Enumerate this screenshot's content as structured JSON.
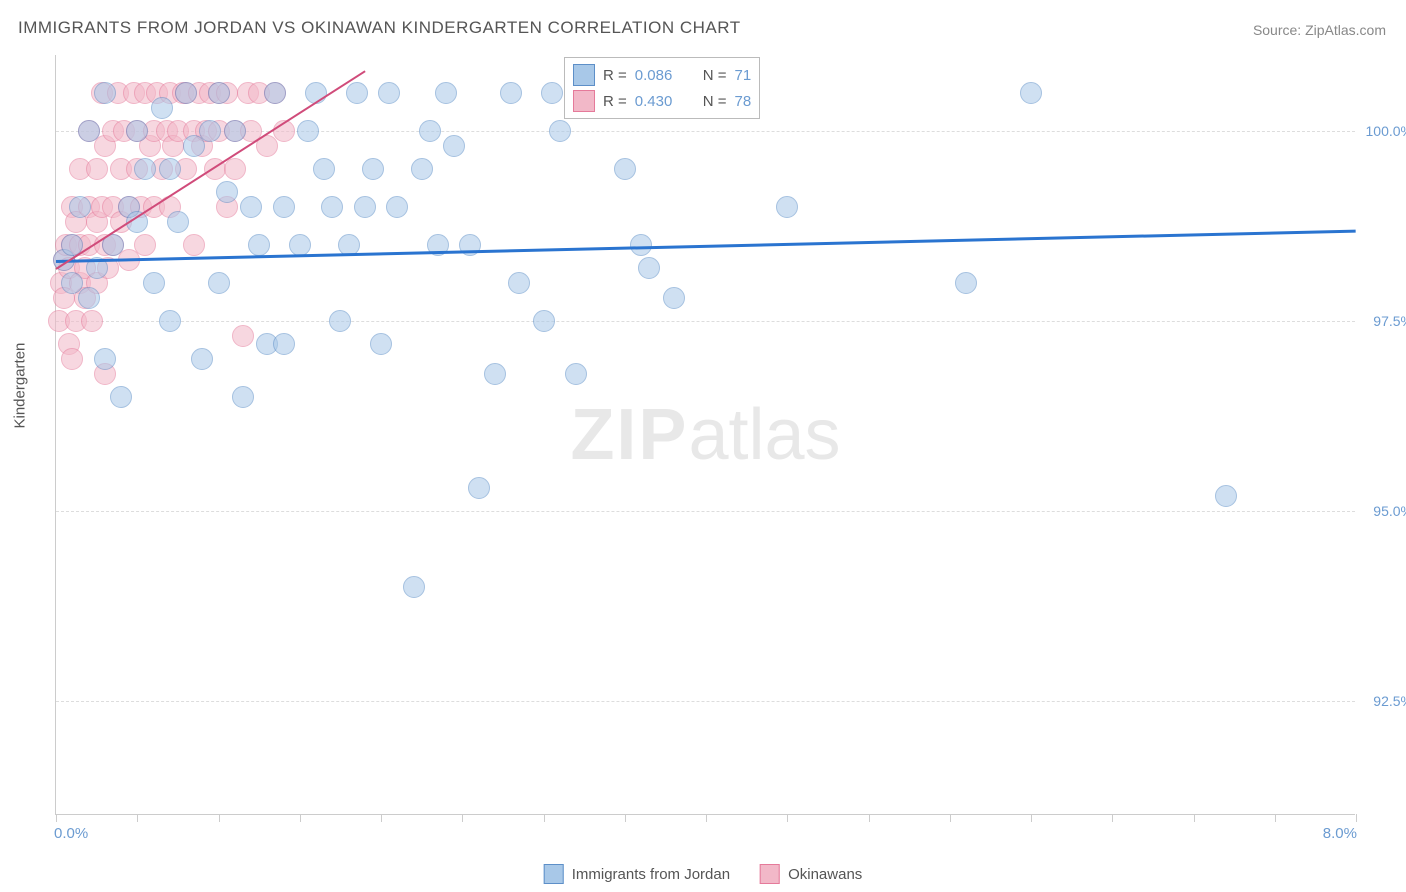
{
  "title": "IMMIGRANTS FROM JORDAN VS OKINAWAN KINDERGARTEN CORRELATION CHART",
  "source": "Source: ZipAtlas.com",
  "watermark_prefix": "ZIP",
  "watermark_suffix": "atlas",
  "chart": {
    "type": "scatter",
    "xlabel": "",
    "ylabel": "Kindergarten",
    "xlim": [
      0,
      8
    ],
    "ylim": [
      91,
      101
    ],
    "xtick_values": [
      0,
      0.5,
      1.0,
      1.5,
      2.0,
      2.5,
      3.0,
      3.5,
      4.0,
      4.5,
      5.0,
      5.5,
      6.0,
      6.5,
      7.0,
      7.5,
      8.0
    ],
    "xtick_labels_left": "0.0%",
    "xtick_labels_right": "8.0%",
    "ytick_values": [
      92.5,
      95.0,
      97.5,
      100.0
    ],
    "ytick_labels": [
      "92.5%",
      "95.0%",
      "97.5%",
      "100.0%"
    ],
    "grid_color": "#dddddd",
    "background_color": "#ffffff",
    "axis_color": "#cccccc",
    "label_fontsize": 15,
    "tick_label_color": "#6b9bd1",
    "marker_radius": 11,
    "marker_opacity": 0.55,
    "series": [
      {
        "name": "Immigrants from Jordan",
        "fill_color": "#a8c8e8",
        "stroke_color": "#5d8fc8",
        "R": "0.086",
        "N": "71",
        "trendline": {
          "x1": 0,
          "y1": 98.3,
          "x2": 8,
          "y2": 98.7,
          "width": 2.5,
          "color": "#2a74d0"
        },
        "points": [
          [
            0.05,
            98.3
          ],
          [
            0.1,
            98.0
          ],
          [
            0.1,
            98.5
          ],
          [
            0.2,
            97.8
          ],
          [
            0.15,
            99.0
          ],
          [
            0.2,
            100.0
          ],
          [
            0.25,
            98.2
          ],
          [
            0.3,
            97.0
          ],
          [
            0.3,
            100.5
          ],
          [
            0.35,
            98.5
          ],
          [
            0.4,
            96.5
          ],
          [
            0.45,
            99.0
          ],
          [
            0.5,
            100.0
          ],
          [
            0.5,
            98.8
          ],
          [
            0.55,
            99.5
          ],
          [
            0.6,
            98.0
          ],
          [
            0.65,
            100.3
          ],
          [
            0.7,
            99.5
          ],
          [
            0.7,
            97.5
          ],
          [
            0.75,
            98.8
          ],
          [
            0.8,
            100.5
          ],
          [
            0.85,
            99.8
          ],
          [
            0.9,
            97.0
          ],
          [
            0.95,
            100.0
          ],
          [
            1.0,
            100.5
          ],
          [
            1.0,
            98.0
          ],
          [
            1.05,
            99.2
          ],
          [
            1.1,
            100.0
          ],
          [
            1.15,
            96.5
          ],
          [
            1.2,
            99.0
          ],
          [
            1.25,
            98.5
          ],
          [
            1.3,
            97.2
          ],
          [
            1.35,
            100.5
          ],
          [
            1.4,
            97.2
          ],
          [
            1.4,
            99.0
          ],
          [
            1.5,
            98.5
          ],
          [
            1.55,
            100.0
          ],
          [
            1.6,
            100.5
          ],
          [
            1.65,
            99.5
          ],
          [
            1.7,
            99.0
          ],
          [
            1.75,
            97.5
          ],
          [
            1.8,
            98.5
          ],
          [
            1.85,
            100.5
          ],
          [
            1.9,
            99.0
          ],
          [
            1.95,
            99.5
          ],
          [
            2.0,
            97.2
          ],
          [
            2.05,
            100.5
          ],
          [
            2.1,
            99.0
          ],
          [
            2.2,
            94.0
          ],
          [
            2.25,
            99.5
          ],
          [
            2.3,
            100.0
          ],
          [
            2.35,
            98.5
          ],
          [
            2.4,
            100.5
          ],
          [
            2.45,
            99.8
          ],
          [
            2.55,
            98.5
          ],
          [
            2.6,
            95.3
          ],
          [
            2.7,
            96.8
          ],
          [
            2.8,
            100.5
          ],
          [
            2.85,
            98.0
          ],
          [
            3.0,
            97.5
          ],
          [
            3.05,
            100.5
          ],
          [
            3.1,
            100.0
          ],
          [
            3.2,
            96.8
          ],
          [
            3.5,
            99.5
          ],
          [
            3.6,
            98.5
          ],
          [
            3.65,
            98.2
          ],
          [
            3.8,
            97.8
          ],
          [
            4.5,
            99.0
          ],
          [
            5.6,
            98.0
          ],
          [
            6.0,
            100.5
          ],
          [
            7.2,
            95.2
          ]
        ]
      },
      {
        "name": "Okinawans",
        "fill_color": "#f2b8c8",
        "stroke_color": "#e57a9a",
        "R": "0.430",
        "N": "78",
        "trendline": {
          "x1": 0,
          "y1": 98.2,
          "x2": 1.9,
          "y2": 100.8,
          "width": 2,
          "color": "#d04b7a"
        },
        "points": [
          [
            0.02,
            97.5
          ],
          [
            0.03,
            98.0
          ],
          [
            0.05,
            98.3
          ],
          [
            0.05,
            97.8
          ],
          [
            0.06,
            98.5
          ],
          [
            0.08,
            98.2
          ],
          [
            0.08,
            97.2
          ],
          [
            0.1,
            97.0
          ],
          [
            0.1,
            98.5
          ],
          [
            0.1,
            99.0
          ],
          [
            0.12,
            98.8
          ],
          [
            0.12,
            97.5
          ],
          [
            0.15,
            98.5
          ],
          [
            0.15,
            99.5
          ],
          [
            0.15,
            98.0
          ],
          [
            0.18,
            97.8
          ],
          [
            0.18,
            98.2
          ],
          [
            0.2,
            99.0
          ],
          [
            0.2,
            98.5
          ],
          [
            0.2,
            100.0
          ],
          [
            0.22,
            97.5
          ],
          [
            0.25,
            98.8
          ],
          [
            0.25,
            99.5
          ],
          [
            0.25,
            98.0
          ],
          [
            0.28,
            100.5
          ],
          [
            0.28,
            99.0
          ],
          [
            0.3,
            98.5
          ],
          [
            0.3,
            99.8
          ],
          [
            0.3,
            96.8
          ],
          [
            0.32,
            98.2
          ],
          [
            0.35,
            100.0
          ],
          [
            0.35,
            99.0
          ],
          [
            0.35,
            98.5
          ],
          [
            0.38,
            100.5
          ],
          [
            0.4,
            99.5
          ],
          [
            0.4,
            98.8
          ],
          [
            0.42,
            100.0
          ],
          [
            0.45,
            99.0
          ],
          [
            0.45,
            98.3
          ],
          [
            0.48,
            100.5
          ],
          [
            0.5,
            99.5
          ],
          [
            0.5,
            100.0
          ],
          [
            0.52,
            99.0
          ],
          [
            0.55,
            100.5
          ],
          [
            0.55,
            98.5
          ],
          [
            0.58,
            99.8
          ],
          [
            0.6,
            100.0
          ],
          [
            0.6,
            99.0
          ],
          [
            0.62,
            100.5
          ],
          [
            0.65,
            99.5
          ],
          [
            0.68,
            100.0
          ],
          [
            0.7,
            100.5
          ],
          [
            0.7,
            99.0
          ],
          [
            0.72,
            99.8
          ],
          [
            0.75,
            100.0
          ],
          [
            0.78,
            100.5
          ],
          [
            0.8,
            99.5
          ],
          [
            0.8,
            100.5
          ],
          [
            0.85,
            100.0
          ],
          [
            0.85,
            98.5
          ],
          [
            0.88,
            100.5
          ],
          [
            0.9,
            99.8
          ],
          [
            0.92,
            100.0
          ],
          [
            0.95,
            100.5
          ],
          [
            0.98,
            99.5
          ],
          [
            1.0,
            100.0
          ],
          [
            1.0,
            100.5
          ],
          [
            1.05,
            100.5
          ],
          [
            1.05,
            99.0
          ],
          [
            1.1,
            100.0
          ],
          [
            1.1,
            99.5
          ],
          [
            1.15,
            97.3
          ],
          [
            1.18,
            100.5
          ],
          [
            1.2,
            100.0
          ],
          [
            1.25,
            100.5
          ],
          [
            1.3,
            99.8
          ],
          [
            1.35,
            100.5
          ],
          [
            1.4,
            100.0
          ]
        ]
      }
    ],
    "legend_top": {
      "r_label": "R =",
      "n_label": "N ="
    },
    "legend_bottom": {
      "labels": [
        "Immigrants from Jordan",
        "Okinawans"
      ]
    }
  }
}
